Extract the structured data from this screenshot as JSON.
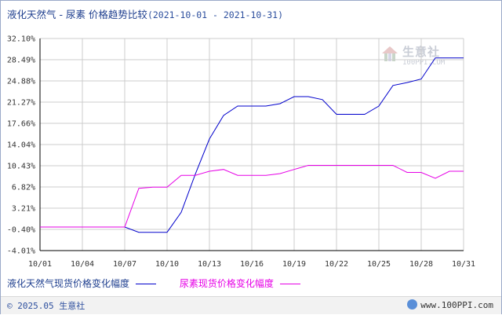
{
  "title": {
    "main": "液化天然气 - 尿素 价格趋势比较",
    "range": "(2021-10-01 - 2021-10-31)"
  },
  "watermark": {
    "name": "生意社",
    "url": "100PPI.COM"
  },
  "footer": {
    "copyright": "© 2025.05 生意社",
    "site": "www.100PPI.com"
  },
  "colors": {
    "lng": "#0000cc",
    "urea": "#e600e6",
    "grid": "#cccccc",
    "axis": "#000000"
  },
  "chart_data": {
    "type": "line",
    "title": "液化天然气 - 尿素 价格趋势比较",
    "xlabel": "",
    "ylabel": "",
    "x_ticks": [
      "10/01",
      "10/04",
      "10/07",
      "10/10",
      "10/13",
      "10/16",
      "10/19",
      "10/22",
      "10/25",
      "10/28",
      "10/31"
    ],
    "y_ticks": [
      "32.10%",
      "28.49%",
      "24.88%",
      "21.27%",
      "17.66%",
      "14.04%",
      "10.43%",
      "6.82%",
      "3.21%",
      "-0.40%",
      "-4.01%"
    ],
    "ylim": [
      -4.01,
      32.1
    ],
    "xlim": [
      "2021-10-01",
      "2021-10-31"
    ],
    "grid": true,
    "legend_position": "bottom",
    "series": [
      {
        "name": "液化天然气现货价格变化幅度",
        "x": [
          "2021-10-01",
          "2021-10-07",
          "2021-10-08",
          "2021-10-09",
          "2021-10-10",
          "2021-10-11",
          "2021-10-12",
          "2021-10-13",
          "2021-10-14",
          "2021-10-15",
          "2021-10-16",
          "2021-10-17",
          "2021-10-18",
          "2021-10-19",
          "2021-10-20",
          "2021-10-21",
          "2021-10-22",
          "2021-10-23",
          "2021-10-24",
          "2021-10-25",
          "2021-10-26",
          "2021-10-27",
          "2021-10-28",
          "2021-10-29",
          "2021-10-30",
          "2021-10-31"
        ],
        "values": [
          0.0,
          0.0,
          -0.9,
          -0.9,
          -0.9,
          2.5,
          9.0,
          15.0,
          19.0,
          20.6,
          20.6,
          20.6,
          21.0,
          22.2,
          22.2,
          21.7,
          19.2,
          19.2,
          19.2,
          20.6,
          24.1,
          24.6,
          25.2,
          28.8,
          28.8,
          28.8
        ]
      },
      {
        "name": "尿素现货价格变化幅度",
        "x": [
          "2021-10-01",
          "2021-10-07",
          "2021-10-08",
          "2021-10-09",
          "2021-10-10",
          "2021-10-11",
          "2021-10-12",
          "2021-10-13",
          "2021-10-14",
          "2021-10-15",
          "2021-10-16",
          "2021-10-17",
          "2021-10-18",
          "2021-10-19",
          "2021-10-20",
          "2021-10-21",
          "2021-10-22",
          "2021-10-23",
          "2021-10-24",
          "2021-10-25",
          "2021-10-26",
          "2021-10-27",
          "2021-10-28",
          "2021-10-29",
          "2021-10-30",
          "2021-10-31"
        ],
        "values": [
          0.0,
          0.0,
          6.6,
          6.8,
          6.8,
          8.8,
          8.8,
          9.5,
          9.8,
          8.8,
          8.8,
          8.8,
          9.1,
          9.8,
          10.5,
          10.5,
          10.5,
          10.5,
          10.5,
          10.5,
          10.5,
          9.3,
          9.3,
          8.3,
          9.5,
          9.5
        ]
      }
    ]
  }
}
